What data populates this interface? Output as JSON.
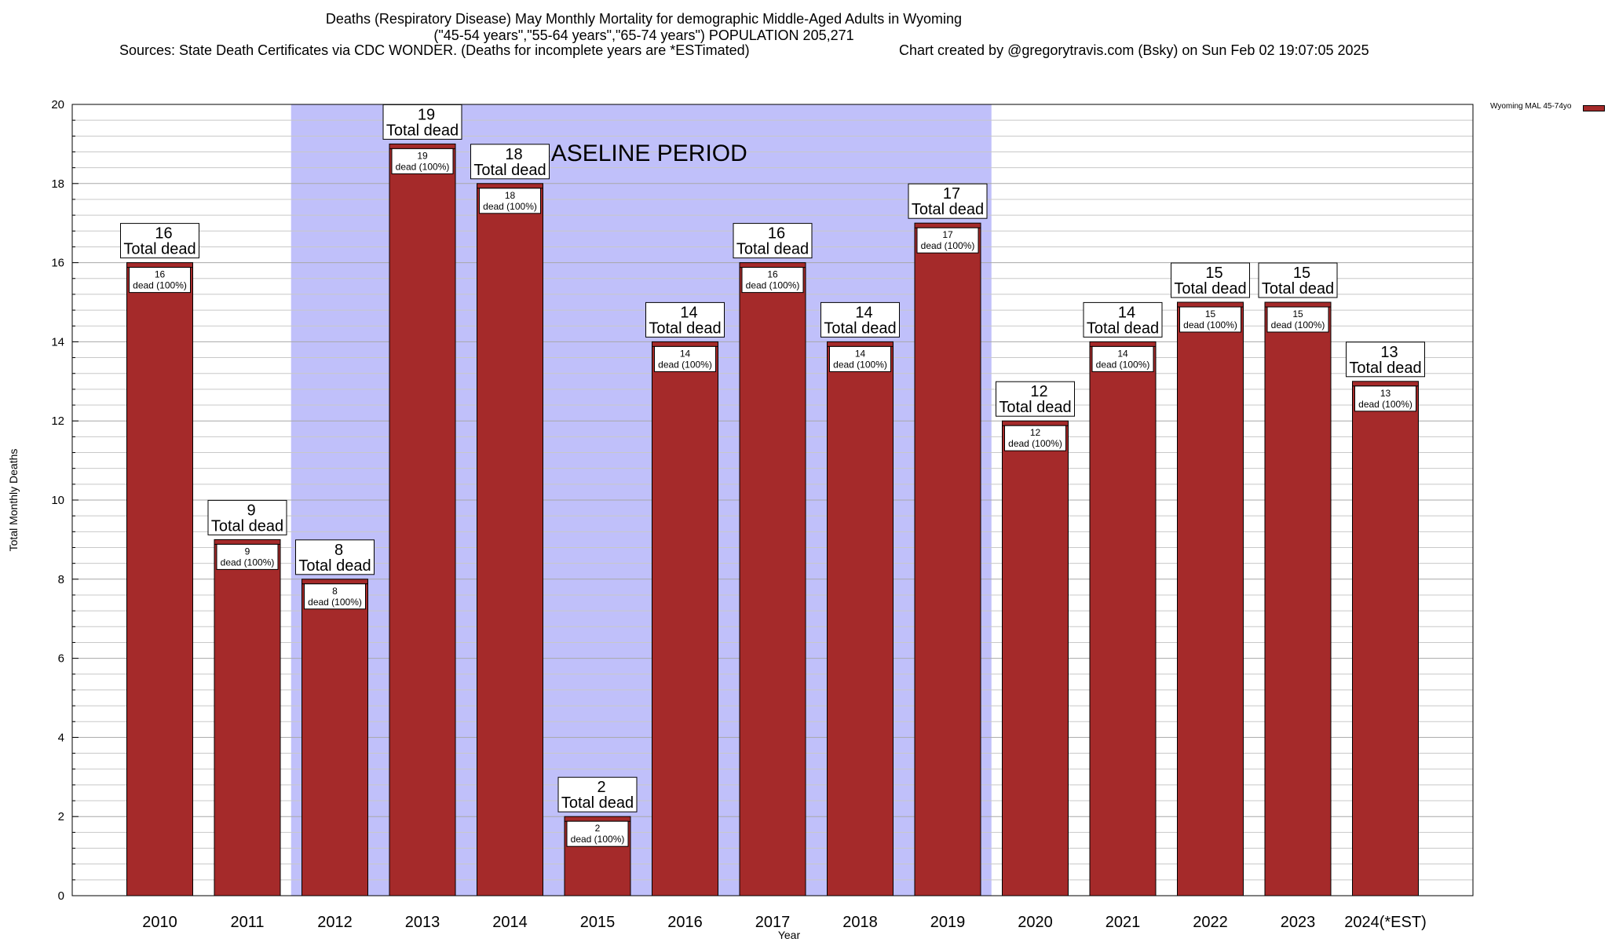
{
  "header": {
    "title_line1": "Deaths (Respiratory Disease) May Monthly Mortality for demographic Middle-Aged Adults in Wyoming",
    "title_line2": "(\"45-54 years\",\"55-64 years\",\"65-74 years\") POPULATION 205,271",
    "sources": "Sources: State Death Certificates via CDC WONDER. (Deaths for incomplete years are *ESTimated)",
    "credit": "Chart created by @gregorytravis.com (Bsky) on Sun Feb 02 19:07:05 2025"
  },
  "chart_data": {
    "type": "bar",
    "categories": [
      "2010",
      "2011",
      "2012",
      "2013",
      "2014",
      "2015",
      "2016",
      "2017",
      "2018",
      "2019",
      "2020",
      "2021",
      "2022",
      "2023",
      "2024(*EST)"
    ],
    "series": [
      {
        "name": "Wyoming MAL 45-74yo",
        "values": [
          16,
          9,
          8,
          19,
          18,
          2,
          14,
          16,
          14,
          17,
          12,
          14,
          15,
          15,
          13
        ],
        "color": "#a52a2a"
      }
    ],
    "xlabel": "Year",
    "ylabel": "Total Monthly Deaths",
    "ylim": [
      0,
      20
    ],
    "yticks": [
      0,
      2,
      4,
      6,
      8,
      10,
      12,
      14,
      16,
      18,
      20
    ],
    "total_label": "Total dead",
    "inner_label_suffix": "dead (100%)",
    "baseline": {
      "label": "BASELINE PERIOD",
      "start": "2012",
      "end": "2019",
      "color": "#c0c0fa"
    },
    "grid": true,
    "legend_position": "top-right"
  }
}
